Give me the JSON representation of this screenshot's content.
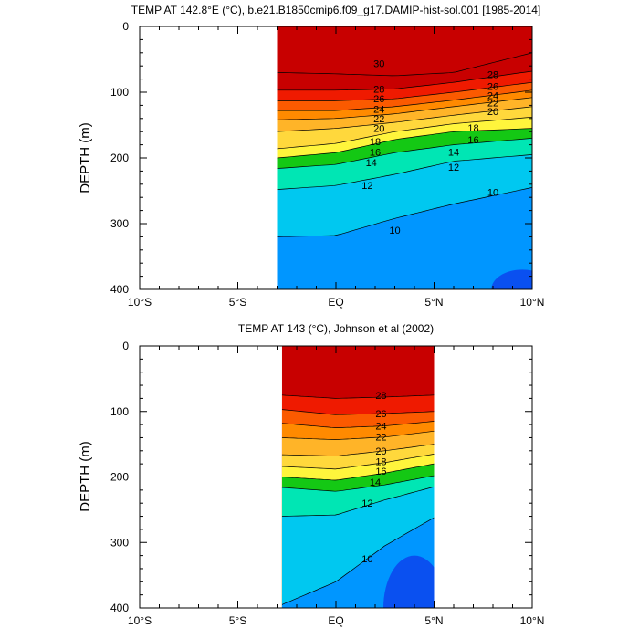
{
  "chart_data": [
    {
      "type": "contour",
      "title": "TEMP AT 142.8°E (°C), b.e21.B1850cmip6.f09_g17.DAMIP-hist-sol.001 [1985-2014]",
      "ylabel": "DEPTH (m)",
      "xlabel": "",
      "xlim": [
        -10,
        10
      ],
      "ylim": [
        400,
        0
      ],
      "xticks": [
        -10,
        -5,
        0,
        5,
        10
      ],
      "xtick_labels": [
        "10°S",
        "5°S",
        "EQ",
        "5°N",
        "10°N"
      ],
      "yticks": [
        0,
        100,
        200,
        300,
        400
      ],
      "ytick_labels": [
        "0",
        "100",
        "200",
        "300",
        "400"
      ],
      "data_lat_range": [
        -3,
        10
      ],
      "contour_levels": [
        10,
        12,
        14,
        16,
        18,
        20,
        22,
        24,
        26,
        28,
        30
      ],
      "isotherms": [
        {
          "level": 30,
          "lat": [
            -3,
            0,
            3,
            6,
            10
          ],
          "depth": [
            70,
            72,
            75,
            70,
            40
          ]
        },
        {
          "level": 28,
          "lat": [
            -3,
            0,
            3,
            6,
            10
          ],
          "depth": [
            97,
            97,
            95,
            85,
            68
          ]
        },
        {
          "level": 26,
          "lat": [
            -3,
            0,
            3,
            6,
            10
          ],
          "depth": [
            113,
            113,
            110,
            100,
            85
          ]
        },
        {
          "level": 24,
          "lat": [
            -3,
            0,
            3,
            6,
            10
          ],
          "depth": [
            128,
            128,
            122,
            112,
            97
          ]
        },
        {
          "level": 22,
          "lat": [
            -3,
            0,
            3,
            6,
            10
          ],
          "depth": [
            142,
            140,
            133,
            122,
            108
          ]
        },
        {
          "level": 20,
          "lat": [
            -3,
            0,
            3,
            6,
            10
          ],
          "depth": [
            160,
            155,
            146,
            135,
            122
          ]
        },
        {
          "level": 18,
          "lat": [
            -3,
            0,
            3,
            6,
            10
          ],
          "depth": [
            186,
            178,
            160,
            148,
            138
          ]
        },
        {
          "level": 16,
          "lat": [
            -3,
            0,
            3,
            6,
            10
          ],
          "depth": [
            200,
            192,
            172,
            160,
            155
          ]
        },
        {
          "level": 14,
          "lat": [
            -3,
            0,
            3,
            6,
            10
          ],
          "depth": [
            216,
            210,
            192,
            180,
            170
          ]
        },
        {
          "level": 12,
          "lat": [
            -3,
            0,
            3,
            6,
            10
          ],
          "depth": [
            248,
            242,
            225,
            205,
            195
          ]
        },
        {
          "level": 10,
          "lat": [
            -3,
            0,
            3,
            6,
            10
          ],
          "depth": [
            320,
            318,
            292,
            270,
            245
          ]
        }
      ],
      "labels": [
        {
          "text": "30",
          "lat": 2.2,
          "depth": 56
        },
        {
          "text": "28",
          "lat": 2.2,
          "depth": 95
        },
        {
          "text": "26",
          "lat": 2.2,
          "depth": 110
        },
        {
          "text": "24",
          "lat": 2.2,
          "depth": 126
        },
        {
          "text": "22",
          "lat": 2.2,
          "depth": 140
        },
        {
          "text": "20",
          "lat": 2.2,
          "depth": 155
        },
        {
          "text": "18",
          "lat": 2.0,
          "depth": 175
        },
        {
          "text": "16",
          "lat": 2.0,
          "depth": 191
        },
        {
          "text": "14",
          "lat": 1.8,
          "depth": 207
        },
        {
          "text": "12",
          "lat": 1.6,
          "depth": 242
        },
        {
          "text": "10",
          "lat": 3.0,
          "depth": 310
        },
        {
          "text": "28",
          "lat": 8.0,
          "depth": 73
        },
        {
          "text": "26",
          "lat": 8.0,
          "depth": 91
        },
        {
          "text": "24",
          "lat": 8.0,
          "depth": 105
        },
        {
          "text": "22",
          "lat": 8.0,
          "depth": 116
        },
        {
          "text": "20",
          "lat": 8.0,
          "depth": 129
        },
        {
          "text": "18",
          "lat": 7.0,
          "depth": 154
        },
        {
          "text": "16",
          "lat": 7.0,
          "depth": 172
        },
        {
          "text": "14",
          "lat": 6.0,
          "depth": 191
        },
        {
          "text": "12",
          "lat": 6.0,
          "depth": 214
        },
        {
          "text": "10",
          "lat": 8.0,
          "depth": 252
        }
      ],
      "cold_core": {
        "lat_center": 9.5,
        "depth_top": 370,
        "value": 8
      }
    },
    {
      "type": "contour",
      "title": "TEMP AT 143 (°C), Johnson et al (2002)",
      "ylabel": "DEPTH (m)",
      "xlabel": "",
      "xlim": [
        -10,
        10
      ],
      "ylim": [
        400,
        0
      ],
      "xticks": [
        -10,
        -5,
        0,
        5,
        10
      ],
      "xtick_labels": [
        "10°S",
        "5°S",
        "EQ",
        "5°N",
        "10°N"
      ],
      "yticks": [
        0,
        100,
        200,
        300,
        400
      ],
      "ytick_labels": [
        "0",
        "100",
        "200",
        "300",
        "400"
      ],
      "data_lat_range": [
        -2.75,
        5
      ],
      "contour_levels": [
        10,
        12,
        14,
        16,
        18,
        20,
        22,
        24,
        26,
        28
      ],
      "isotherms": [
        {
          "level": 28,
          "lat": [
            -2.75,
            0,
            2.5,
            5
          ],
          "depth": [
            75,
            80,
            78,
            75
          ]
        },
        {
          "level": 26,
          "lat": [
            -2.75,
            0,
            2.5,
            5
          ],
          "depth": [
            97,
            105,
            103,
            100
          ]
        },
        {
          "level": 24,
          "lat": [
            -2.75,
            0,
            2.5,
            5
          ],
          "depth": [
            118,
            125,
            122,
            115
          ]
        },
        {
          "level": 22,
          "lat": [
            -2.75,
            0,
            2.5,
            5
          ],
          "depth": [
            140,
            143,
            139,
            130
          ]
        },
        {
          "level": 20,
          "lat": [
            -2.75,
            0,
            2.5,
            5
          ],
          "depth": [
            166,
            168,
            160,
            150
          ]
        },
        {
          "level": 18,
          "lat": [
            -2.75,
            0,
            2.5,
            5
          ],
          "depth": [
            184,
            188,
            178,
            165
          ]
        },
        {
          "level": 16,
          "lat": [
            -2.75,
            0,
            2.5,
            5
          ],
          "depth": [
            200,
            205,
            194,
            180
          ]
        },
        {
          "level": 14,
          "lat": [
            -2.75,
            0,
            2.5,
            5
          ],
          "depth": [
            216,
            222,
            212,
            198
          ]
        },
        {
          "level": 12,
          "lat": [
            -2.75,
            0,
            2.5,
            5
          ],
          "depth": [
            260,
            258,
            235,
            215
          ]
        },
        {
          "level": 10,
          "lat": [
            -2.75,
            0,
            2.5,
            5
          ],
          "depth": [
            395,
            360,
            305,
            262
          ]
        }
      ],
      "labels": [
        {
          "text": "28",
          "lat": 2.3,
          "depth": 75
        },
        {
          "text": "26",
          "lat": 2.3,
          "depth": 103
        },
        {
          "text": "24",
          "lat": 2.3,
          "depth": 122
        },
        {
          "text": "22",
          "lat": 2.3,
          "depth": 139
        },
        {
          "text": "20",
          "lat": 2.3,
          "depth": 160
        },
        {
          "text": "18",
          "lat": 2.3,
          "depth": 176
        },
        {
          "text": "16",
          "lat": 2.3,
          "depth": 191
        },
        {
          "text": "14",
          "lat": 2.0,
          "depth": 208
        },
        {
          "text": "12",
          "lat": 1.6,
          "depth": 240
        },
        {
          "text": "10",
          "lat": 1.6,
          "depth": 325
        }
      ],
      "cold_core": {
        "lat_center": 4.0,
        "depth_top": 320,
        "value": 8
      }
    }
  ]
}
